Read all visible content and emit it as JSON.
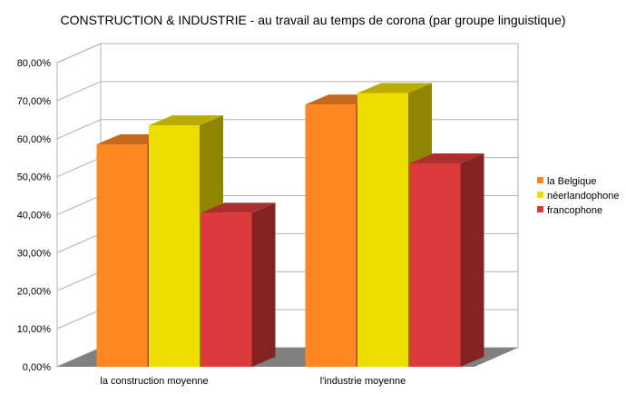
{
  "chart_data": {
    "type": "bar",
    "title": "CONSTRUCTION & INDUSTRIE - au travail au temps de corona (par groupe linguistique)",
    "xlabel": "",
    "ylabel": "",
    "categories": [
      "la construction moyenne",
      "l'industrie moyenne"
    ],
    "series": [
      {
        "name": "la Belgique",
        "color": "#ff8722",
        "values": [
          58.5,
          69
        ]
      },
      {
        "name": "néerlandophone",
        "color": "#eedd00",
        "values": [
          63.5,
          72
        ]
      },
      {
        "name": "francophone",
        "color": "#dd3b3b",
        "values": [
          40.5,
          53.5
        ]
      }
    ],
    "ylim": [
      0,
      80
    ],
    "y_ticks": [
      0,
      10,
      20,
      30,
      40,
      50,
      60,
      70,
      80
    ],
    "y_tick_labels": [
      "0,00%",
      "10,00%",
      "20,00%",
      "30,00%",
      "40,00%",
      "50,00%",
      "60,00%",
      "70,00%",
      "80,00%"
    ],
    "grid": true,
    "three_d": true,
    "legend_position": "right"
  }
}
